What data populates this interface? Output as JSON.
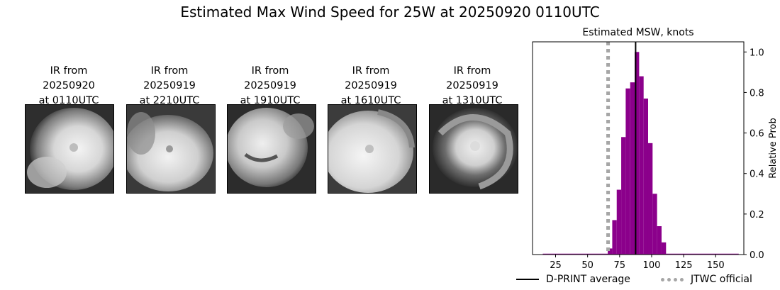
{
  "figure": {
    "title": "Estimated Max Wind Speed for 25W at 20250920 0110UTC"
  },
  "ir_panels": [
    {
      "line1": "IR from",
      "line2": "20250920",
      "line3": "at 0110UTC"
    },
    {
      "line1": "IR from",
      "line2": "20250919",
      "line3": "at 2210UTC"
    },
    {
      "line1": "IR from",
      "line2": "20250919",
      "line3": "at 1910UTC"
    },
    {
      "line1": "IR from",
      "line2": "20250919",
      "line3": "at 1610UTC"
    },
    {
      "line1": "IR from",
      "line2": "20250919",
      "line3": "at 1310UTC"
    }
  ],
  "chart_data": {
    "type": "bar",
    "title": "Estimated MSW, knots",
    "xlabel": "",
    "ylabel": "Relative Prob",
    "xlim": [
      7,
      172
    ],
    "ylim": [
      0,
      1.05
    ],
    "xticks": [
      25,
      50,
      75,
      100,
      125,
      150
    ],
    "yticks": [
      0.0,
      0.2,
      0.4,
      0.6,
      0.8,
      1.0
    ],
    "ytick_labels": [
      "0.0",
      "0.2",
      "0.4",
      "0.6",
      "0.8",
      "1.0"
    ],
    "y_axis_side": "right",
    "bin_width": 3.5,
    "bins": [
      {
        "x": 67.5,
        "value": 0.03
      },
      {
        "x": 71.0,
        "value": 0.17
      },
      {
        "x": 74.5,
        "value": 0.32
      },
      {
        "x": 78.0,
        "value": 0.58
      },
      {
        "x": 81.5,
        "value": 0.82
      },
      {
        "x": 85.0,
        "value": 0.85
      },
      {
        "x": 88.5,
        "value": 1.0
      },
      {
        "x": 92.0,
        "value": 0.88
      },
      {
        "x": 95.5,
        "value": 0.77
      },
      {
        "x": 99.0,
        "value": 0.55
      },
      {
        "x": 102.5,
        "value": 0.3
      },
      {
        "x": 106.0,
        "value": 0.14
      },
      {
        "x": 109.5,
        "value": 0.06
      }
    ],
    "baseline": {
      "from": 15,
      "to": 168
    },
    "bar_color": "#8B008B",
    "dprint_average": 87.5,
    "jtwc_official": 66,
    "dprint_color": "#000000",
    "jtwc_color": "#A6A6A6",
    "legend": {
      "placement": "bottom",
      "dprint_label": "D-PRINT average",
      "jtwc_label": "JTWC official"
    }
  }
}
